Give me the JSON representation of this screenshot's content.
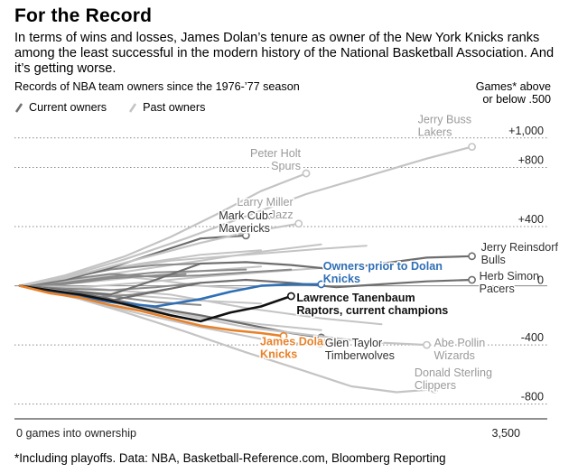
{
  "header": {
    "title": "For the Record",
    "subtitle": "In terms of wins and losses, James Dolan’s tenure as owner of the New York Knicks ranks among the least successful in the modern history of the National Basketball Association. And it’s getting worse.",
    "chart_caption": "Records of NBA team owners since the 1976-’77 season",
    "y_unit_line1": "Games* above",
    "y_unit_line2": "or below .500"
  },
  "legend": {
    "current": "Current owners",
    "past": "Past owners"
  },
  "footnote": "*Including playoffs. Data: NBA, Basketball-Reference.com, Bloomberg Reporting",
  "colors": {
    "current": "#6e6e6e",
    "past": "#c4c4c4",
    "dolan": "#e8822a",
    "prior": "#2f6fb5",
    "tanenbaum": "#111111",
    "grid": "#888888"
  },
  "chart_data": {
    "type": "line",
    "xlabel": "0 games into ownership",
    "xmax_label": "3,500",
    "xlim": [
      0,
      3500
    ],
    "ylim": [
      -900,
      1200
    ],
    "yticks": [
      {
        "v": 1000,
        "label": "+1,000"
      },
      {
        "v": 800,
        "label": "+800"
      },
      {
        "v": 400,
        "label": "+400"
      },
      {
        "v": 0,
        "label": "0"
      },
      {
        "v": -400,
        "label": "-400"
      },
      {
        "v": -800,
        "label": "-800"
      }
    ],
    "labeled_series": [
      {
        "owner": "Jerry Buss",
        "team": "Lakers",
        "status": "past",
        "points": [
          [
            0,
            0
          ],
          [
            300,
            60
          ],
          [
            700,
            180
          ],
          [
            1100,
            320
          ],
          [
            1500,
            470
          ],
          [
            1900,
            620
          ],
          [
            2300,
            740
          ],
          [
            2700,
            860
          ],
          [
            3000,
            940
          ]
        ]
      },
      {
        "owner": "Peter Holt",
        "team": "Spurs",
        "status": "past",
        "points": [
          [
            0,
            0
          ],
          [
            300,
            70
          ],
          [
            700,
            200
          ],
          [
            1000,
            330
          ],
          [
            1300,
            480
          ],
          [
            1600,
            640
          ],
          [
            1900,
            760
          ]
        ]
      },
      {
        "owner": "Mark Cuban",
        "team": "Mavericks",
        "status": "current",
        "points": [
          [
            0,
            0
          ],
          [
            300,
            40
          ],
          [
            600,
            120
          ],
          [
            900,
            220
          ],
          [
            1200,
            320
          ],
          [
            1500,
            340
          ]
        ]
      },
      {
        "owner": "Larry Miller",
        "team": "Jazz",
        "status": "past",
        "points": [
          [
            0,
            0
          ],
          [
            300,
            50
          ],
          [
            600,
            130
          ],
          [
            900,
            210
          ],
          [
            1200,
            290
          ],
          [
            1500,
            360
          ],
          [
            1850,
            420
          ]
        ]
      },
      {
        "owner": "Jerry Reinsdorf",
        "team": "Bulls",
        "status": "current",
        "points": [
          [
            0,
            0
          ],
          [
            300,
            -30
          ],
          [
            600,
            -60
          ],
          [
            900,
            40
          ],
          [
            1200,
            150
          ],
          [
            1500,
            160
          ],
          [
            1800,
            140
          ],
          [
            2100,
            110
          ],
          [
            2400,
            150
          ],
          [
            2700,
            190
          ],
          [
            3000,
            200
          ]
        ]
      },
      {
        "owner": "Herb Simon",
        "team": "Pacers",
        "status": "current",
        "points": [
          [
            0,
            0
          ],
          [
            300,
            -60
          ],
          [
            600,
            -100
          ],
          [
            900,
            -40
          ],
          [
            1200,
            20
          ],
          [
            1500,
            40
          ],
          [
            1800,
            20
          ],
          [
            2100,
            -10
          ],
          [
            2400,
            10
          ],
          [
            2700,
            30
          ],
          [
            3000,
            40
          ]
        ]
      },
      {
        "owner": "Owners prior to Dolan",
        "team": "Knicks",
        "status": "highlight",
        "points": [
          [
            0,
            0
          ],
          [
            300,
            -50
          ],
          [
            600,
            -110
          ],
          [
            900,
            -140
          ],
          [
            1200,
            -90
          ],
          [
            1400,
            -40
          ],
          [
            1600,
            0
          ],
          [
            1800,
            10
          ],
          [
            2000,
            10
          ]
        ]
      },
      {
        "owner": "Lawrence Tanenbaum",
        "team": "Raptors, current champions",
        "status": "highlight",
        "points": [
          [
            0,
            0
          ],
          [
            200,
            -30
          ],
          [
            400,
            -60
          ],
          [
            600,
            -100
          ],
          [
            800,
            -150
          ],
          [
            1000,
            -200
          ],
          [
            1200,
            -240
          ],
          [
            1400,
            -180
          ],
          [
            1600,
            -140
          ],
          [
            1800,
            -70
          ]
        ]
      },
      {
        "owner": "James Dolan",
        "team": "Knicks",
        "status": "highlight",
        "points": [
          [
            0,
            0
          ],
          [
            200,
            -50
          ],
          [
            400,
            -80
          ],
          [
            600,
            -130
          ],
          [
            800,
            -170
          ],
          [
            1000,
            -220
          ],
          [
            1200,
            -270
          ],
          [
            1400,
            -300
          ],
          [
            1600,
            -320
          ],
          [
            1750,
            -340
          ]
        ]
      },
      {
        "owner": "Glen Taylor",
        "team": "Timberwolves",
        "status": "current",
        "points": [
          [
            0,
            0
          ],
          [
            300,
            -30
          ],
          [
            600,
            -90
          ],
          [
            900,
            -150
          ],
          [
            1200,
            -200
          ],
          [
            1500,
            -260
          ],
          [
            1800,
            -320
          ],
          [
            2000,
            -350
          ]
        ]
      },
      {
        "owner": "Abe Pollin",
        "team": "Wizards",
        "status": "past",
        "points": [
          [
            0,
            0
          ],
          [
            300,
            -40
          ],
          [
            700,
            -120
          ],
          [
            1100,
            -200
          ],
          [
            1500,
            -280
          ],
          [
            1900,
            -330
          ],
          [
            2300,
            -380
          ],
          [
            2700,
            -400
          ]
        ]
      },
      {
        "owner": "Donald Sterling",
        "team": "Clippers",
        "status": "past",
        "points": [
          [
            0,
            0
          ],
          [
            300,
            -60
          ],
          [
            700,
            -180
          ],
          [
            1100,
            -310
          ],
          [
            1500,
            -450
          ],
          [
            1900,
            -580
          ],
          [
            2200,
            -680
          ],
          [
            2500,
            -720
          ],
          [
            2750,
            -700
          ]
        ]
      }
    ],
    "background_series": [
      {
        "status": "past",
        "points": [
          [
            0,
            0
          ],
          [
            400,
            80
          ],
          [
            800,
            150
          ],
          [
            1200,
            210
          ],
          [
            1600,
            240
          ]
        ]
      },
      {
        "status": "past",
        "points": [
          [
            0,
            0
          ],
          [
            400,
            50
          ],
          [
            800,
            110
          ],
          [
            1200,
            170
          ],
          [
            1600,
            230
          ],
          [
            2000,
            280
          ]
        ]
      },
      {
        "status": "past",
        "points": [
          [
            0,
            0
          ],
          [
            400,
            20
          ],
          [
            800,
            60
          ],
          [
            1200,
            100
          ],
          [
            1600,
            130
          ]
        ]
      },
      {
        "status": "past",
        "points": [
          [
            0,
            0
          ],
          [
            400,
            -10
          ],
          [
            800,
            20
          ],
          [
            1200,
            60
          ],
          [
            1600,
            90
          ],
          [
            2000,
            120
          ]
        ]
      },
      {
        "status": "past",
        "points": [
          [
            0,
            0
          ],
          [
            400,
            -40
          ],
          [
            800,
            -70
          ],
          [
            1200,
            -100
          ],
          [
            1600,
            -120
          ]
        ]
      },
      {
        "status": "past",
        "points": [
          [
            0,
            0
          ],
          [
            400,
            -70
          ],
          [
            800,
            -140
          ],
          [
            1200,
            -210
          ],
          [
            1600,
            -260
          ],
          [
            2000,
            -300
          ]
        ]
      },
      {
        "status": "past",
        "points": [
          [
            0,
            0
          ],
          [
            400,
            -90
          ],
          [
            800,
            -190
          ],
          [
            1200,
            -280
          ],
          [
            1600,
            -360
          ],
          [
            2000,
            -410
          ]
        ]
      },
      {
        "status": "past",
        "points": [
          [
            0,
            0
          ],
          [
            300,
            -40
          ],
          [
            600,
            -110
          ],
          [
            900,
            -180
          ],
          [
            1200,
            -240
          ]
        ]
      },
      {
        "status": "past",
        "points": [
          [
            0,
            0
          ],
          [
            300,
            30
          ],
          [
            600,
            70
          ],
          [
            900,
            40
          ],
          [
            1200,
            0
          ],
          [
            1500,
            -20
          ]
        ]
      },
      {
        "status": "past",
        "points": [
          [
            0,
            0
          ],
          [
            500,
            100
          ],
          [
            1000,
            170
          ],
          [
            1500,
            210
          ],
          [
            2000,
            250
          ],
          [
            2300,
            270
          ]
        ]
      },
      {
        "status": "past",
        "points": [
          [
            0,
            0
          ],
          [
            500,
            -20
          ],
          [
            1000,
            -60
          ],
          [
            1500,
            -150
          ],
          [
            2000,
            -220
          ],
          [
            2400,
            -260
          ]
        ]
      },
      {
        "status": "current",
        "points": [
          [
            0,
            0
          ],
          [
            300,
            50
          ],
          [
            600,
            110
          ],
          [
            900,
            140
          ],
          [
            1200,
            150
          ]
        ]
      },
      {
        "status": "current",
        "points": [
          [
            0,
            0
          ],
          [
            300,
            20
          ],
          [
            600,
            60
          ],
          [
            900,
            90
          ],
          [
            1200,
            100
          ],
          [
            1500,
            110
          ]
        ]
      },
      {
        "status": "current",
        "points": [
          [
            0,
            0
          ],
          [
            300,
            -20
          ],
          [
            600,
            -30
          ],
          [
            900,
            -10
          ],
          [
            1200,
            20
          ]
        ]
      },
      {
        "status": "current",
        "points": [
          [
            0,
            0
          ],
          [
            300,
            -30
          ],
          [
            600,
            -70
          ],
          [
            900,
            -110
          ],
          [
            1200,
            -130
          ]
        ]
      },
      {
        "status": "current",
        "points": [
          [
            0,
            0
          ],
          [
            300,
            10
          ],
          [
            600,
            50
          ],
          [
            900,
            70
          ],
          [
            1100,
            80
          ]
        ]
      },
      {
        "status": "current",
        "points": [
          [
            0,
            0
          ],
          [
            250,
            -40
          ],
          [
            500,
            -80
          ],
          [
            750,
            -60
          ],
          [
            1000,
            -20
          ]
        ]
      },
      {
        "status": "current",
        "points": [
          [
            0,
            0
          ],
          [
            300,
            40
          ],
          [
            600,
            80
          ],
          [
            900,
            60
          ],
          [
            1200,
            70
          ],
          [
            1500,
            90
          ],
          [
            1800,
            110
          ]
        ]
      }
    ]
  }
}
